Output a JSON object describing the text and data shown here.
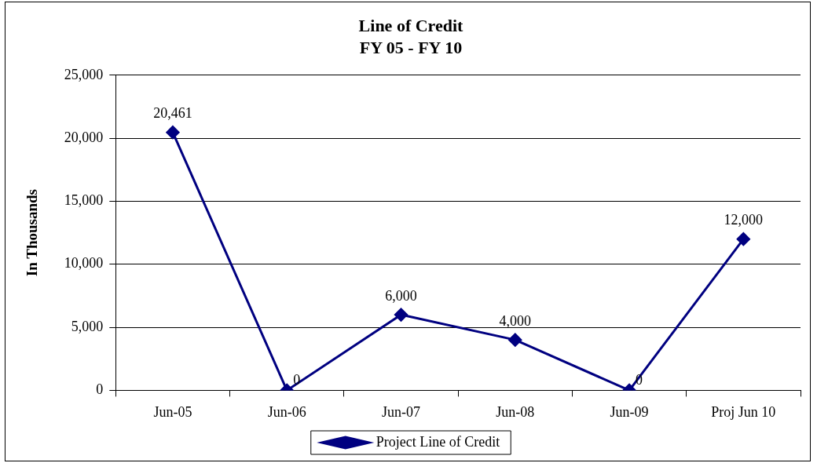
{
  "chart_data": {
    "type": "line",
    "title": "Line of Credit",
    "subtitle": "FY 05 - FY 10",
    "ylabel": "In Thousands",
    "categories": [
      "Jun-05",
      "Jun-06",
      "Jun-07",
      "Jun-08",
      "Jun-09",
      "Proj Jun 10"
    ],
    "series": [
      {
        "name": "Project Line of Credit",
        "color": "#000080",
        "values": [
          20461,
          0,
          6000,
          4000,
          0,
          12000
        ],
        "value_labels": [
          "20,461",
          "0",
          "6,000",
          "4,000",
          "0",
          "12,000"
        ]
      }
    ],
    "ylim": [
      0,
      25000
    ],
    "yticks": [
      0,
      {
        "value": 5000,
        "label": "5,000"
      },
      {
        "value": 10000,
        "label": "10,000"
      },
      {
        "value": 15000,
        "label": "15,000"
      },
      {
        "value": 20000,
        "label": "20,000"
      },
      {
        "value": 25000,
        "label": "25,000"
      }
    ],
    "grid": "y",
    "legend": "bottom",
    "marker": "diamond",
    "line_style": "solid"
  }
}
